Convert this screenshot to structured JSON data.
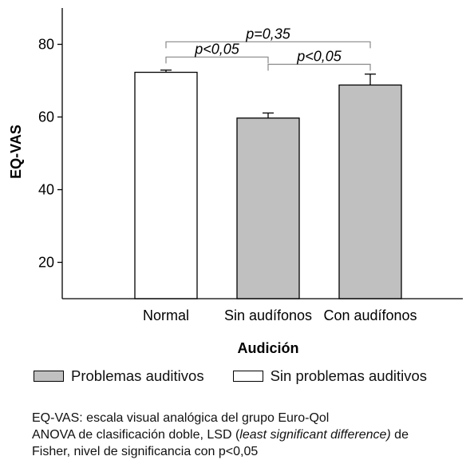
{
  "chart_data": {
    "type": "bar",
    "categories": [
      "Normal",
      "Sin audífonos",
      "Con audífonos"
    ],
    "values": [
      72.3,
      59.7,
      68.8
    ],
    "errors": [
      0.6,
      1.4,
      3.0
    ],
    "colors": [
      "#ffffff",
      "#c0c0c0",
      "#c0c0c0"
    ],
    "xlabel": "Audición",
    "ylabel": "EQ-VAS",
    "ylim": [
      10,
      90
    ],
    "yticks": [
      20,
      40,
      60,
      80
    ],
    "annotations": [
      {
        "from": 0,
        "to": 1,
        "label": "p<0,05",
        "level": 76.5
      },
      {
        "from": 1,
        "to": 2,
        "label": "p<0,05",
        "level": 74.5
      },
      {
        "from": 0,
        "to": 2,
        "label": "p=0,35",
        "level": 80.7
      }
    ],
    "legend": [
      {
        "label": "Problemas auditivos",
        "color": "#c0c0c0"
      },
      {
        "label": "Sin problemas auditivos",
        "color": "#ffffff"
      }
    ]
  },
  "footnote": {
    "line1": "EQ-VAS: escala visual analógica del grupo Euro-Qol",
    "line2_pre": "ANOVA de clasificación doble, LSD (",
    "line2_italic": "least significant difference)",
    "line2_post": " de",
    "line3": "Fisher, nivel de significancia con p<0,05"
  }
}
